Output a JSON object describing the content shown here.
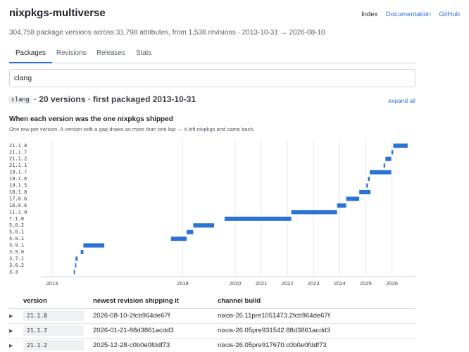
{
  "app": {
    "title": "nixpkgs-multiverse",
    "nav": [
      {
        "label": "Index",
        "active": true
      },
      {
        "label": "Documentation",
        "active": false
      },
      {
        "label": "GitHub",
        "active": false
      }
    ],
    "subtitle": "304,758 package versions across 31,798 attributes, from 1,538 revisions · 2013-10-31 → 2026-08-10"
  },
  "tabs": [
    {
      "label": "Packages",
      "active": true
    },
    {
      "label": "Revisions",
      "active": false
    },
    {
      "label": "Releases",
      "active": false
    },
    {
      "label": "Stats",
      "active": false
    }
  ],
  "search": {
    "value": "clang"
  },
  "package": {
    "name": "clang",
    "summary": "· 20 versions · first packaged 2013-10-31",
    "expand_all": "expand all"
  },
  "chart": {
    "title": "When each version was the one nixpkgs shipped",
    "subtitle": "One row per version. A version with a gap draws as more than one bar — it left nixpkgs and came back."
  },
  "chart_data": {
    "type": "bar",
    "orientation": "horizontal-ranges",
    "categories": [
      "21.1.8",
      "21.1.7",
      "21.1.2",
      "21.1.1",
      "19.1.7",
      "19.1.6",
      "19.1.5",
      "18.1.8",
      "17.0.6",
      "16.0.6",
      "11.1.0",
      "7.1.0",
      "5.0.2",
      "5.0.1",
      "4.0.1",
      "3.9.1",
      "3.9.0",
      "3.7.1",
      "3.6.2",
      "3.3"
    ],
    "x_ticks": [
      2013,
      2018,
      2020,
      2021,
      2022,
      2023,
      2024,
      2025,
      2026
    ],
    "xlim": [
      2012.6,
      2026.9
    ],
    "grid": true,
    "color": "#2b73d2",
    "bars": [
      {
        "version": "21.1.8",
        "start": 2026.05,
        "end": 2026.6
      },
      {
        "version": "21.1.7",
        "start": 2025.98,
        "end": 2026.05
      },
      {
        "version": "21.1.2",
        "start": 2025.75,
        "end": 2025.97
      },
      {
        "version": "21.1.1",
        "start": 2025.68,
        "end": 2025.74
      },
      {
        "version": "19.1.7",
        "start": 2025.15,
        "end": 2025.97
      },
      {
        "version": "19.1.6",
        "start": 2025.08,
        "end": 2025.15
      },
      {
        "version": "19.1.5",
        "start": 2025.02,
        "end": 2025.08
      },
      {
        "version": "18.1.8",
        "start": 2024.75,
        "end": 2025.18
      },
      {
        "version": "17.0.6",
        "start": 2024.25,
        "end": 2024.75
      },
      {
        "version": "16.0.6",
        "start": 2023.9,
        "end": 2024.25
      },
      {
        "version": "11.1.0",
        "start": 2022.15,
        "end": 2023.9
      },
      {
        "version": "7.1.0",
        "start": 2019.6,
        "end": 2022.15
      },
      {
        "version": "5.0.2",
        "start": 2018.4,
        "end": 2019.2
      },
      {
        "version": "5.0.1",
        "start": 2018.15,
        "end": 2018.4
      },
      {
        "version": "4.0.1",
        "start": 2017.55,
        "end": 2018.15
      },
      {
        "version": "3.9.1",
        "start": 2014.2,
        "end": 2015.0
      },
      {
        "version": "3.9.0",
        "start": 2014.1,
        "end": 2014.2
      },
      {
        "version": "3.7.1",
        "start": 2013.9,
        "end": 2013.98
      },
      {
        "version": "3.6.2",
        "start": 2013.88,
        "end": 2013.93
      },
      {
        "version": "3.3",
        "start": 2013.83,
        "end": 2013.88
      }
    ]
  },
  "table": {
    "headers": [
      "version",
      "newest revision shipping it",
      "channel build"
    ],
    "rows": [
      {
        "version": "21.1.8",
        "revision": "2026-08-10-2fcb964de67f",
        "channel": "nixos-26.11pre1051473.2fcb964de67f"
      },
      {
        "version": "21.1.7",
        "revision": "2026-01-21-88d3861acdd3",
        "channel": "nixos-26.05pre931542.88d3861acdd3"
      },
      {
        "version": "21.1.2",
        "revision": "2025-12-28-c0b0e0fddf73",
        "channel": "nixos-26.05pre917670.c0b0e0fddf73"
      }
    ]
  }
}
